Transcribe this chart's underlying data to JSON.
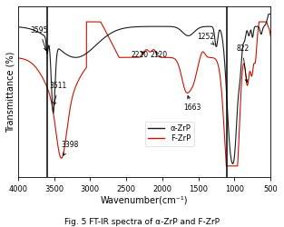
{
  "title": "Fig. 5 FT-IR spectra of α-ZrP and F-ZrP",
  "xlabel": "Wavenumber(cm⁻¹)",
  "ylabel": "Transmittance (%)",
  "xlim": [
    4000,
    500
  ],
  "legend_alpha": "α-ZrP",
  "legend_F": "F-ZrP",
  "color_alpha": "#1a1a1a",
  "color_F": "#cc1100",
  "background": "#ffffff",
  "vline1": 3595,
  "vline2": 1100
}
